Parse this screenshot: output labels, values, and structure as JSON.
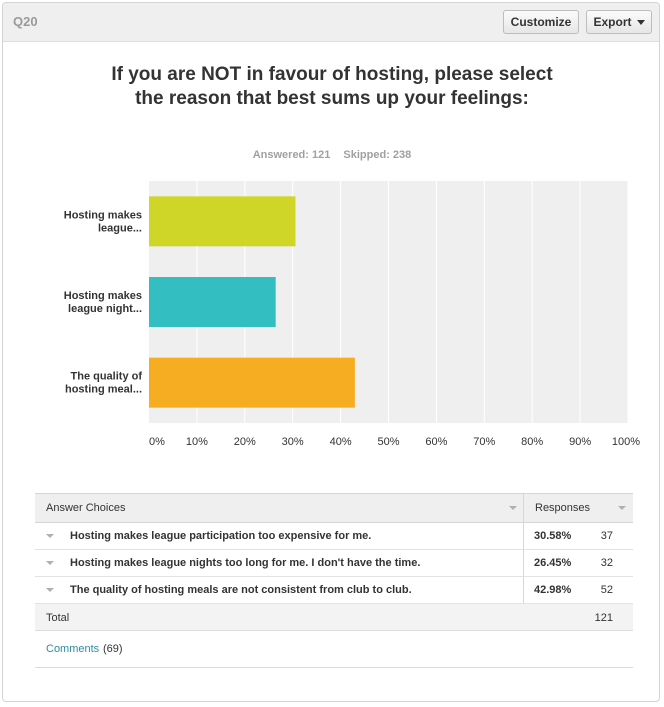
{
  "header": {
    "question_id": "Q20",
    "customize_label": "Customize",
    "export_label": "Export"
  },
  "question": {
    "title": "If you are NOT in favour of hosting, please select the reason that best sums up your feelings:",
    "answered_text": "Answered: 121",
    "skipped_text": "Skipped: 238"
  },
  "colors": {
    "bar1": "#cfd628",
    "bar2": "#33bfc1",
    "bar3": "#f6ad22",
    "plot_bg": "#efefef",
    "gridline": "#ffffff",
    "link": "#2e8ca0"
  },
  "chart_data": {
    "type": "bar",
    "orientation": "horizontal",
    "categories": [
      "Hosting makes league...",
      "Hosting makes league night...",
      "The quality of hosting meal..."
    ],
    "category_lines": [
      [
        "Hosting makes",
        "league..."
      ],
      [
        "Hosting makes",
        "league night..."
      ],
      [
        "The quality of",
        "hosting meal..."
      ]
    ],
    "values": [
      30.58,
      26.45,
      42.98
    ],
    "xlim": [
      0,
      100
    ],
    "xticks": [
      "0%",
      "10%",
      "20%",
      "30%",
      "40%",
      "50%",
      "60%",
      "70%",
      "80%",
      "90%",
      "100%"
    ],
    "grid": true
  },
  "table": {
    "header_choices": "Answer Choices",
    "header_responses": "Responses",
    "rows": [
      {
        "choice": "Hosting makes league participation too expensive for me.",
        "percent": "30.58%",
        "count": "37"
      },
      {
        "choice": "Hosting makes league nights too long for me. I don't have the time.",
        "percent": "26.45%",
        "count": "32"
      },
      {
        "choice": "The quality of hosting meals are not consistent from club to club.",
        "percent": "42.98%",
        "count": "52"
      }
    ],
    "total_label": "Total",
    "total_value": "121"
  },
  "comments": {
    "link_label": "Comments",
    "count_text": "(69)"
  }
}
